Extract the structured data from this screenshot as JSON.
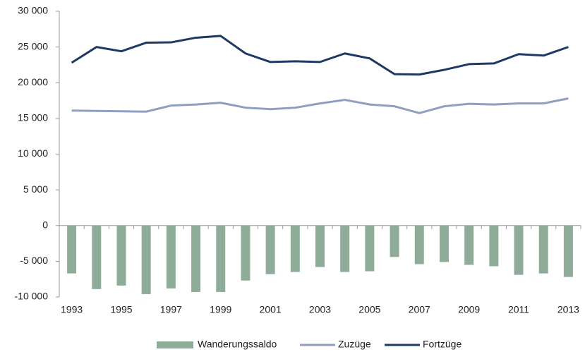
{
  "chart_data": {
    "type": "bar",
    "categories": [
      "1993",
      null,
      "1995",
      null,
      "1997",
      null,
      "1999",
      null,
      "2001",
      null,
      "2003",
      null,
      "2005",
      null,
      "2007",
      null,
      "2009",
      null,
      "2011",
      null,
      "2013"
    ],
    "series": [
      {
        "name": "Wanderungssaldo",
        "type": "bar",
        "color": "#8fac99",
        "values": [
          -6700,
          -8900,
          -8400,
          -9600,
          -8800,
          -9300,
          -9300,
          -7700,
          -6800,
          -6500,
          -5800,
          -6500,
          -6400,
          -4400,
          -5400,
          -5100,
          -5500,
          -5700,
          -6900,
          -6700,
          -7200
        ]
      },
      {
        "name": "Zuzüge",
        "type": "line",
        "color": "#8f9fbf",
        "values": [
          16100,
          16050,
          16000,
          15950,
          16800,
          16950,
          17200,
          16500,
          16300,
          16500,
          17100,
          17600,
          16950,
          16700,
          15750,
          16700,
          17050,
          16950,
          17100,
          17100,
          17800
        ]
      },
      {
        "name": "Fortzüge",
        "type": "line",
        "color": "#1f3864",
        "values": [
          22800,
          25000,
          24400,
          25600,
          25650,
          26300,
          26550,
          24100,
          22900,
          23000,
          22900,
          24100,
          23400,
          21200,
          21150,
          21800,
          22600,
          22700,
          24000,
          23800,
          25000
        ]
      }
    ],
    "ylim": [
      -10000,
      30000
    ],
    "yticks": [
      {
        "value": -10000,
        "label": "-10 000"
      },
      {
        "value": -5000,
        "label": "-5 000"
      },
      0,
      {
        "value": 5000,
        "label": "5 000"
      },
      {
        "value": 10000,
        "label": "10 000"
      },
      {
        "value": 15000,
        "label": "15 000"
      },
      {
        "value": 20000,
        "label": "20 000"
      },
      {
        "value": 25000,
        "label": "25 000"
      },
      {
        "value": 30000,
        "label": "30 000"
      }
    ],
    "grid": false,
    "legend": "bottom"
  }
}
